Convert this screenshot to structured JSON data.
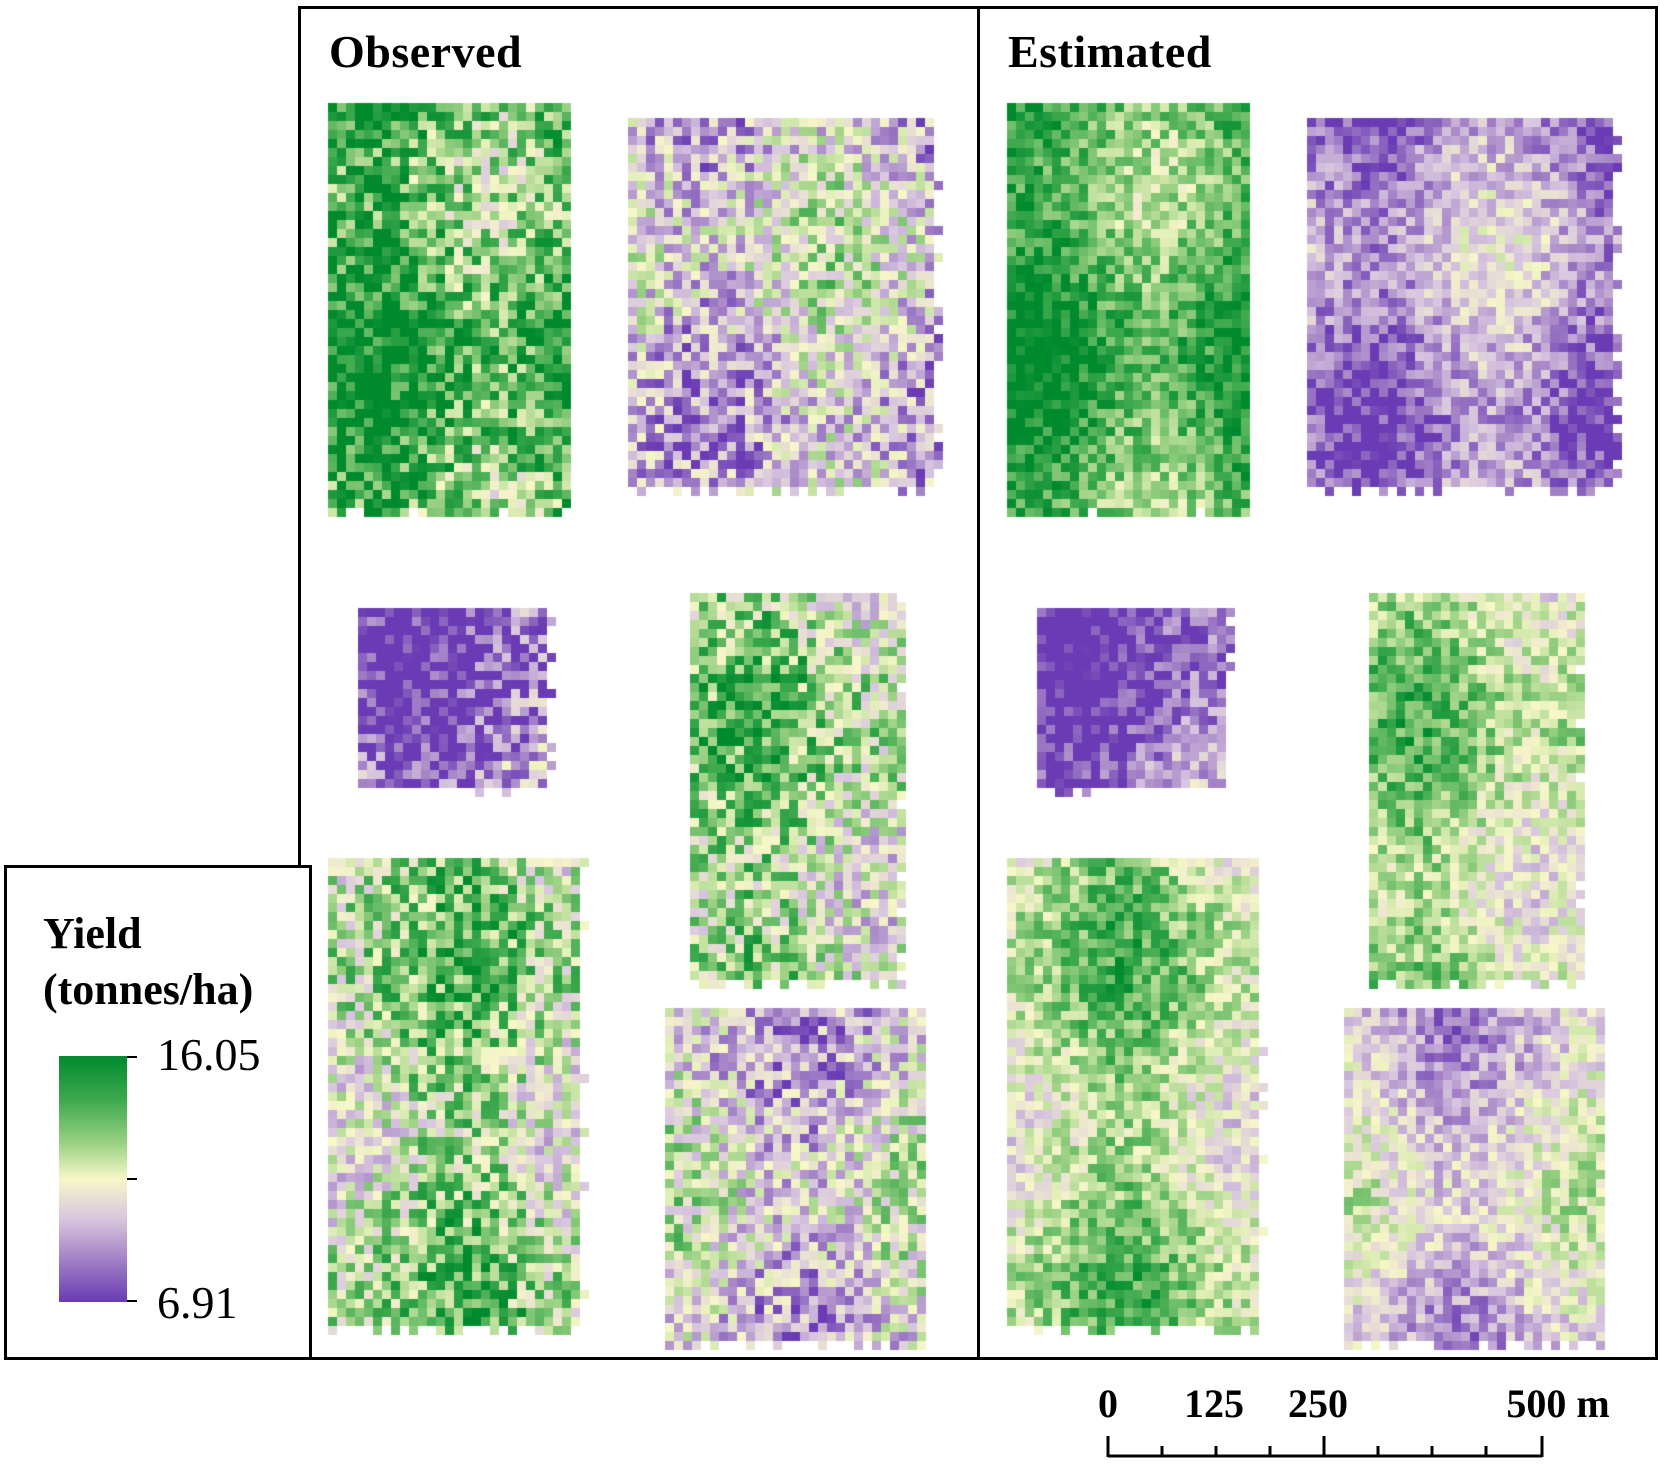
{
  "panels": {
    "observed": {
      "title": "Observed"
    },
    "estimated": {
      "title": "Estimated"
    }
  },
  "legend": {
    "title_line1": "Yield",
    "title_line2": "(tonnes/ha)",
    "max_label": "16.05",
    "min_label": "6.91",
    "max_value": 16.05,
    "min_value": 6.91,
    "colors": [
      "#6a3bb4",
      "#a584c7",
      "#d9c7df",
      "#f7f7c8",
      "#9dd285",
      "#3ea94e",
      "#008a2e"
    ]
  },
  "scale_bar": {
    "unit": "m",
    "labels": [
      "0",
      "125",
      "250",
      "500 m"
    ],
    "values": [
      0,
      125,
      250,
      500
    ]
  },
  "fields": [
    {
      "id": "field-1",
      "observed_pattern": "mostly-high",
      "estimated_pattern": "mostly-high"
    },
    {
      "id": "field-2",
      "observed_pattern": "mixed-low",
      "estimated_pattern": "mostly-low"
    },
    {
      "id": "field-3",
      "observed_pattern": "low",
      "estimated_pattern": "low"
    },
    {
      "id": "field-4",
      "observed_pattern": "mixed-high",
      "estimated_pattern": "mixed-high"
    },
    {
      "id": "field-5",
      "observed_pattern": "mixed-high",
      "estimated_pattern": "mixed-high"
    },
    {
      "id": "field-6",
      "observed_pattern": "mixed-low",
      "estimated_pattern": "mixed-low"
    }
  ]
}
